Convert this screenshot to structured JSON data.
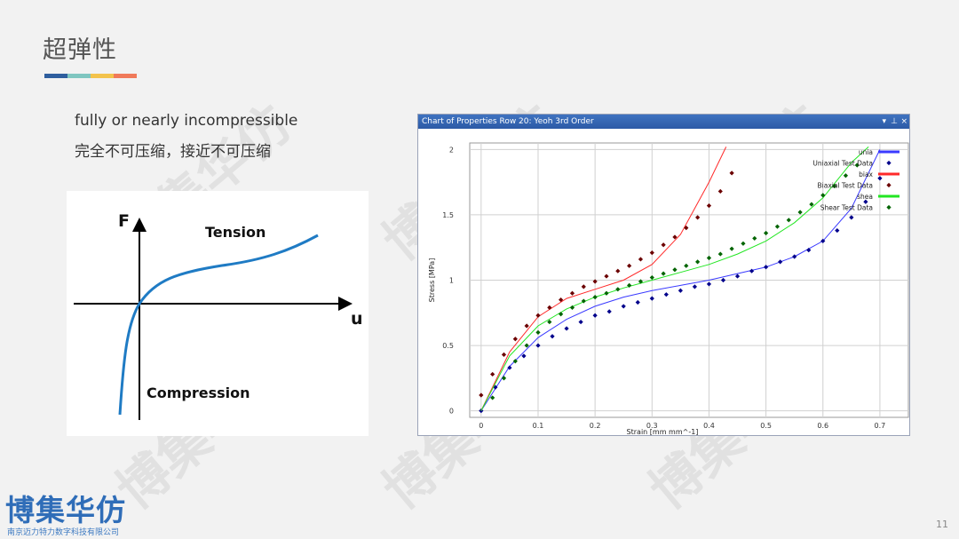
{
  "slide": {
    "title": "超弹性",
    "line_en": "fully or nearly incompressible",
    "line_cn": "完全不可压缩，接近不可压缩",
    "page_number": "11",
    "title_bar_colors": [
      "#2e5e9e",
      "#7fc6c0",
      "#f3c34c",
      "#f07a5a"
    ]
  },
  "diagram": {
    "y_label": "F",
    "x_label": "u",
    "tension_label": "Tension",
    "compression_label": "Compression",
    "curve_color": "#1f7bc4"
  },
  "chart_window": {
    "title": "Chart of Properties Row 20: Yeoh 3rd Order",
    "dropdown_icon": "chevron-down-icon",
    "pin_icon": "pin-icon",
    "close_label": "×"
  },
  "chart_data": {
    "type": "scatter",
    "xlabel": "Strain  [mm mm^-1]",
    "ylabel": "Stress  [MPa]",
    "xlim": [
      -0.02,
      0.75
    ],
    "ylim": [
      -0.05,
      2.05
    ],
    "xticks": [
      "0",
      "0.1",
      "0.2",
      "0.3",
      "0.4",
      "0.5",
      "0.6",
      "0.7"
    ],
    "yticks": [
      "0",
      "0.5",
      "1",
      "1.5",
      "2"
    ],
    "grid": true,
    "legend_position": "top-right",
    "series": [
      {
        "name": "unia",
        "kind": "line",
        "color": "#3a3aff",
        "x": [
          0,
          0.05,
          0.1,
          0.15,
          0.2,
          0.25,
          0.3,
          0.35,
          0.4,
          0.45,
          0.5,
          0.55,
          0.6,
          0.65,
          0.7
        ],
        "y": [
          0,
          0.34,
          0.56,
          0.7,
          0.8,
          0.87,
          0.92,
          0.96,
          1.0,
          1.05,
          1.1,
          1.18,
          1.3,
          1.55,
          2.0
        ]
      },
      {
        "name": "Uniaxial Test Data",
        "kind": "points",
        "color": "#00008b",
        "x": [
          0,
          0.025,
          0.05,
          0.075,
          0.1,
          0.125,
          0.15,
          0.175,
          0.2,
          0.225,
          0.25,
          0.275,
          0.3,
          0.325,
          0.35,
          0.375,
          0.4,
          0.425,
          0.45,
          0.475,
          0.5,
          0.525,
          0.55,
          0.575,
          0.6,
          0.625,
          0.65,
          0.675,
          0.7
        ],
        "y": [
          0,
          0.18,
          0.33,
          0.42,
          0.5,
          0.57,
          0.63,
          0.68,
          0.73,
          0.76,
          0.8,
          0.83,
          0.86,
          0.89,
          0.92,
          0.95,
          0.97,
          1.0,
          1.03,
          1.07,
          1.1,
          1.14,
          1.18,
          1.23,
          1.3,
          1.38,
          1.48,
          1.6,
          1.78
        ]
      },
      {
        "name": "biax",
        "kind": "line",
        "color": "#ff2a2a",
        "x": [
          0,
          0.05,
          0.1,
          0.15,
          0.2,
          0.25,
          0.3,
          0.35,
          0.4,
          0.43
        ],
        "y": [
          0,
          0.45,
          0.72,
          0.86,
          0.93,
          1.0,
          1.12,
          1.35,
          1.75,
          2.02
        ]
      },
      {
        "name": "Biaxial Test Data",
        "kind": "points",
        "color": "#6b0000",
        "x": [
          0,
          0.02,
          0.04,
          0.06,
          0.08,
          0.1,
          0.12,
          0.14,
          0.16,
          0.18,
          0.2,
          0.22,
          0.24,
          0.26,
          0.28,
          0.3,
          0.32,
          0.34,
          0.36,
          0.38,
          0.4,
          0.42,
          0.44
        ],
        "y": [
          0.12,
          0.28,
          0.43,
          0.55,
          0.65,
          0.73,
          0.79,
          0.85,
          0.9,
          0.95,
          0.99,
          1.03,
          1.07,
          1.11,
          1.16,
          1.21,
          1.27,
          1.33,
          1.4,
          1.48,
          1.57,
          1.68,
          1.82
        ]
      },
      {
        "name": "shea",
        "kind": "line",
        "color": "#22e622",
        "x": [
          0,
          0.05,
          0.1,
          0.15,
          0.2,
          0.25,
          0.3,
          0.35,
          0.4,
          0.45,
          0.5,
          0.55,
          0.6,
          0.65,
          0.68
        ],
        "y": [
          0,
          0.42,
          0.65,
          0.78,
          0.87,
          0.94,
          1.0,
          1.06,
          1.12,
          1.2,
          1.3,
          1.44,
          1.63,
          1.9,
          2.02
        ]
      },
      {
        "name": "Shear Test Data",
        "kind": "points",
        "color": "#006400",
        "x": [
          0.02,
          0.04,
          0.06,
          0.08,
          0.1,
          0.12,
          0.14,
          0.16,
          0.18,
          0.2,
          0.22,
          0.24,
          0.26,
          0.28,
          0.3,
          0.32,
          0.34,
          0.36,
          0.38,
          0.4,
          0.42,
          0.44,
          0.46,
          0.48,
          0.5,
          0.52,
          0.54,
          0.56,
          0.58,
          0.6,
          0.62,
          0.64,
          0.66
        ],
        "y": [
          0.1,
          0.25,
          0.38,
          0.5,
          0.6,
          0.68,
          0.74,
          0.79,
          0.84,
          0.87,
          0.9,
          0.93,
          0.96,
          0.99,
          1.02,
          1.05,
          1.08,
          1.11,
          1.14,
          1.17,
          1.2,
          1.24,
          1.28,
          1.32,
          1.36,
          1.41,
          1.46,
          1.52,
          1.58,
          1.65,
          1.72,
          1.8,
          1.88
        ]
      }
    ]
  },
  "brand": {
    "logo_text": "博集华仿",
    "company_name": "南京迈力特力数字科技有限公司",
    "watermark": "博集华仿"
  }
}
